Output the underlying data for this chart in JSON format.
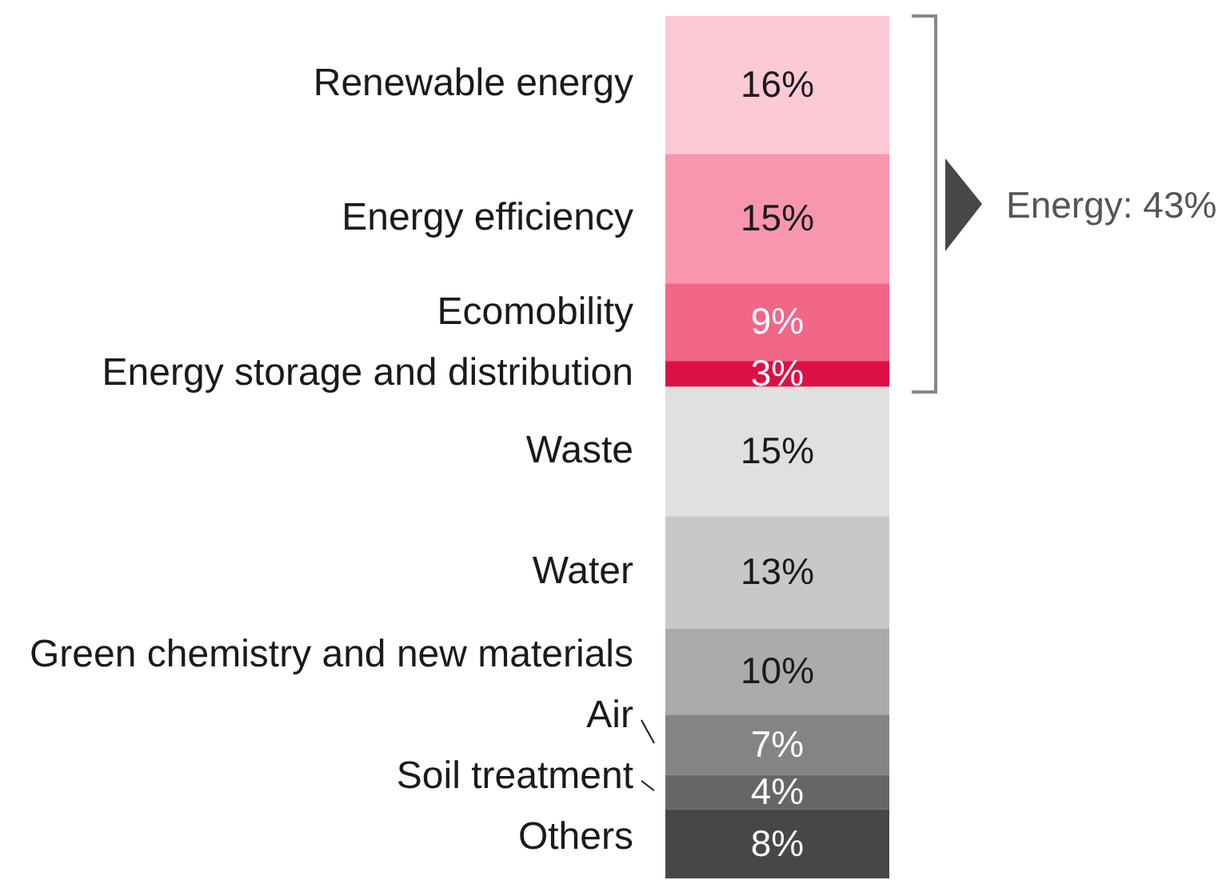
{
  "chart_data": {
    "type": "bar",
    "stacked": true,
    "categories": [
      null
    ],
    "series": [
      {
        "name": "Others",
        "color": "#474747",
        "values": [
          0.08
        ],
        "value_labels": [
          "8%"
        ]
      },
      {
        "name": "Soil treatment",
        "color": "#666666",
        "values": [
          0.04
        ],
        "value_labels": [
          "4%"
        ]
      },
      {
        "name": "Air",
        "color": "#848484",
        "values": [
          0.07
        ],
        "value_labels": [
          "7%"
        ]
      },
      {
        "name": "Green chemistry and new materials",
        "color": "#ababab",
        "values": [
          0.1
        ],
        "value_labels": [
          "10%"
        ]
      },
      {
        "name": "Water",
        "color": "#c8c8c8",
        "values": [
          0.13
        ],
        "value_labels": [
          "13%"
        ]
      },
      {
        "name": "Waste",
        "color": "#e0e0e0",
        "values": [
          0.15
        ],
        "value_labels": [
          "15%"
        ]
      },
      {
        "name": "Energy storage and distribution",
        "color": "#dc1044",
        "values": [
          0.03
        ],
        "value_labels": [
          "3%"
        ]
      },
      {
        "name": "Ecomobility",
        "color": "#f26688",
        "values": [
          0.09
        ],
        "value_labels": [
          "9%"
        ]
      },
      {
        "name": "Energy efficiency",
        "color": "#f796ae",
        "values": [
          0.15
        ],
        "value_labels": [
          "15%"
        ]
      },
      {
        "name": "Renewable energy",
        "color": "#fbcad6",
        "values": [
          0.16
        ],
        "value_labels": [
          "16%"
        ]
      }
    ],
    "annotations": [
      "Energy: 43%"
    ],
    "legend": false
  }
}
